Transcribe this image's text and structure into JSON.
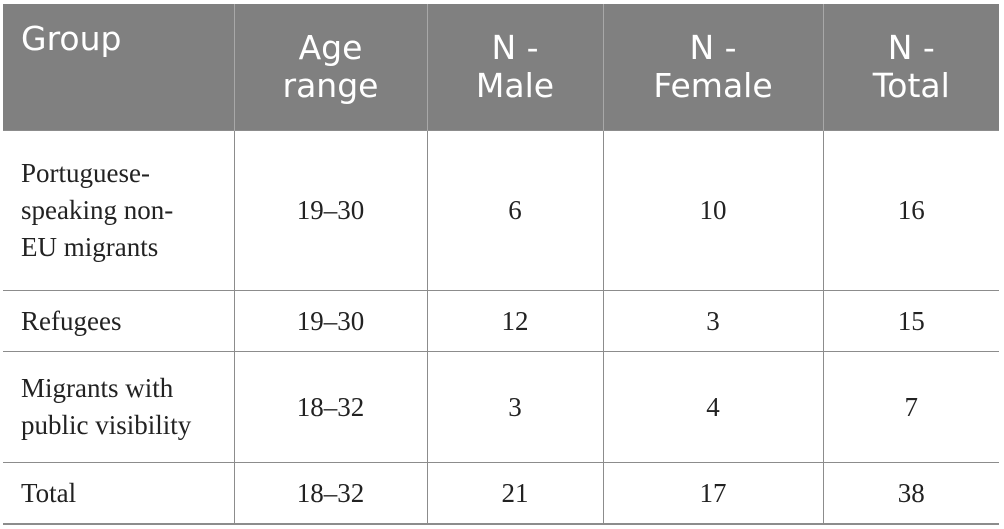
{
  "table": {
    "headers": [
      [
        "Group"
      ],
      [
        "Age",
        "range"
      ],
      [
        "N -",
        "Male"
      ],
      [
        "N -",
        "Female"
      ],
      [
        "N -",
        "Total"
      ]
    ],
    "rows": [
      {
        "group_lines": [
          "Portuguese-",
          "speaking non-",
          "EU migrants"
        ],
        "age_range": "19–30",
        "n_male": "6",
        "n_female": "10",
        "n_total": "16"
      },
      {
        "group_lines": [
          "Refugees"
        ],
        "age_range": "19–30",
        "n_male": "12",
        "n_female": "3",
        "n_total": "15"
      },
      {
        "group_lines": [
          "Migrants with",
          "public visibility"
        ],
        "age_range": "18–32",
        "n_male": "3",
        "n_female": "4",
        "n_total": "7"
      },
      {
        "group_lines": [
          "Total"
        ],
        "age_range": "18–32",
        "n_male": "21",
        "n_female": "17",
        "n_total": "38"
      }
    ],
    "colors": {
      "header_bg": "#808080",
      "header_text": "#ffffff",
      "border": "#8c8c8c"
    }
  }
}
